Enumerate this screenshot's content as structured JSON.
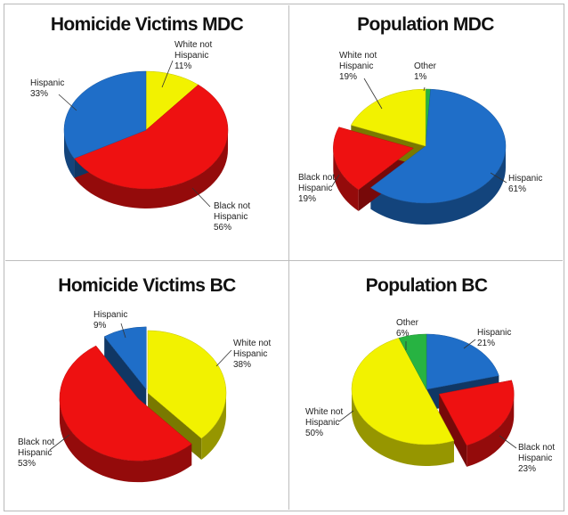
{
  "colors": {
    "Hispanic": "#1f6ec8",
    "Black not Hispanic": "#ee1111",
    "White not Hispanic": "#f2f200",
    "Other": "#27b342"
  },
  "chart_data": [
    {
      "type": "pie",
      "title": "Homicide Victims MDC",
      "slices": [
        {
          "name": "White not Hispanic",
          "label": [
            "White not",
            "Hispanic"
          ],
          "pct_text": "11%",
          "value": 11
        },
        {
          "name": "Black not Hispanic",
          "label": [
            "Black not",
            "Hispanic"
          ],
          "pct_text": "56%",
          "value": 56
        },
        {
          "name": "Hispanic",
          "label": [
            "Hispanic"
          ],
          "pct_text": "33%",
          "value": 33
        }
      ]
    },
    {
      "type": "pie",
      "title": "Population MDC",
      "slices": [
        {
          "name": "Other",
          "label": [
            "Other"
          ],
          "pct_text": "1%",
          "value": 1
        },
        {
          "name": "Hispanic",
          "label": [
            "Hispanic"
          ],
          "pct_text": "61%",
          "value": 61
        },
        {
          "name": "Black not Hispanic",
          "label": [
            "Black not",
            "Hispanic"
          ],
          "pct_text": "19%",
          "value": 19
        },
        {
          "name": "White not Hispanic",
          "label": [
            "White not",
            "Hispanic"
          ],
          "pct_text": "19%",
          "value": 19
        }
      ]
    },
    {
      "type": "pie",
      "title": "Homicide Victims BC",
      "slices": [
        {
          "name": "White not Hispanic",
          "label": [
            "White not",
            "Hispanic"
          ],
          "pct_text": "38%",
          "value": 38
        },
        {
          "name": "Black not Hispanic",
          "label": [
            "Black not",
            "Hispanic"
          ],
          "pct_text": "53%",
          "value": 53
        },
        {
          "name": "Hispanic",
          "label": [
            "Hispanic"
          ],
          "pct_text": "9%",
          "value": 9
        }
      ]
    },
    {
      "type": "pie",
      "title": "Population BC",
      "slices": [
        {
          "name": "Hispanic",
          "label": [
            "Hispanic"
          ],
          "pct_text": "21%",
          "value": 21
        },
        {
          "name": "Black not Hispanic",
          "label": [
            "Black not",
            "Hispanic"
          ],
          "pct_text": "23%",
          "value": 23
        },
        {
          "name": "White not Hispanic",
          "label": [
            "White not",
            "Hispanic"
          ],
          "pct_text": "50%",
          "value": 50
        },
        {
          "name": "Other",
          "label": [
            "Other"
          ],
          "pct_text": "6%",
          "value": 6
        }
      ]
    }
  ]
}
